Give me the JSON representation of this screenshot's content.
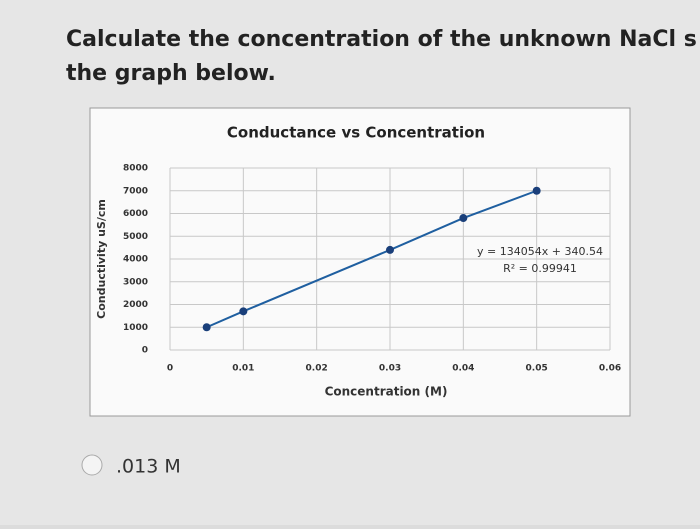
{
  "question": {
    "lines": [
      "Calculate the concentration of the unknown NaCl s",
      "the graph below."
    ]
  },
  "chart_data": {
    "type": "scatter-line",
    "title": "Conductance vs Concentration",
    "x_label": "Concentration (M)",
    "y_label": "Conductivity uS/cm",
    "x": [
      0.005,
      0.01,
      0.03,
      0.04,
      0.05
    ],
    "values": [
      1000,
      1700,
      4400,
      5800,
      7000
    ],
    "color": "#1f5fa0",
    "xlim": [
      0,
      0.06
    ],
    "xticks": [
      0,
      0.01,
      0.02,
      0.03,
      0.04,
      0.05,
      0.06
    ],
    "ylim": [
      0,
      8000
    ],
    "yticks": [
      0,
      1000,
      2000,
      3000,
      4000,
      5000,
      6000,
      7000,
      8000
    ],
    "grid": true,
    "annotations": [
      "y = 134054x + 340.54",
      "R² = 0.99941"
    ]
  },
  "options": [
    ".013 M"
  ]
}
